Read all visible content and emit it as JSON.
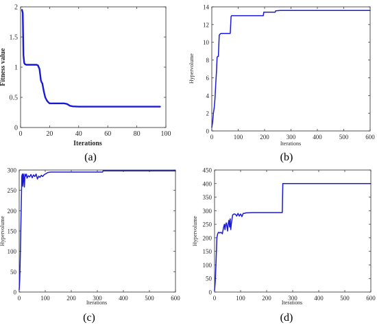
{
  "colors": {
    "series": "#1a1ad6",
    "axis": "#262626"
  },
  "chart_data": [
    {
      "id": "a",
      "panel_label": "(a)",
      "type": "line",
      "xlabel": "Iterations",
      "ylabel": "Fitness value",
      "xlim": [
        0,
        100
      ],
      "ylim": [
        0,
        2
      ],
      "xticks": [
        0,
        20,
        40,
        60,
        80,
        100
      ],
      "yticks": [
        0,
        0.5,
        1,
        1.5,
        2
      ],
      "ytick_labels": [
        "0",
        "0.5",
        "1",
        "1.5",
        "2"
      ],
      "bold_labels": true,
      "series": [
        {
          "x": [
            1,
            1.5,
            2,
            2.5,
            3,
            4,
            6,
            8,
            10,
            11,
            12,
            12.5,
            13,
            14,
            14.5,
            15,
            16,
            17,
            18,
            19,
            20,
            22,
            25,
            30,
            32,
            34,
            36,
            40,
            50,
            60,
            70,
            80,
            90,
            96
          ],
          "y": [
            1.95,
            1.9,
            1.2,
            1.07,
            1.05,
            1.04,
            1.04,
            1.04,
            1.04,
            1.04,
            1.03,
            1.0,
            0.97,
            0.78,
            0.75,
            0.73,
            0.6,
            0.5,
            0.45,
            0.42,
            0.4,
            0.4,
            0.4,
            0.4,
            0.39,
            0.36,
            0.35,
            0.345,
            0.345,
            0.345,
            0.345,
            0.345,
            0.345,
            0.345
          ]
        }
      ]
    },
    {
      "id": "b",
      "panel_label": "(b)",
      "type": "line",
      "xlabel": "Iterations",
      "ylabel": "Hypervolume",
      "xlim": [
        0,
        600
      ],
      "ylim": [
        0,
        14
      ],
      "xticks": [
        0,
        100,
        200,
        300,
        400,
        500,
        600
      ],
      "yticks": [
        0,
        2,
        4,
        6,
        8,
        10,
        12,
        14
      ],
      "ytick_labels": [
        "0",
        "2",
        "4",
        "6",
        "8",
        "10",
        "12",
        "14"
      ],
      "bold_labels": false,
      "series": [
        {
          "x": [
            0,
            3,
            6,
            9,
            12,
            15,
            18,
            20,
            22,
            25,
            28,
            30,
            35,
            40,
            50,
            60,
            70,
            73,
            75,
            100,
            150,
            195,
            197,
            200,
            240,
            242,
            260,
            300,
            400,
            500,
            600
          ],
          "y": [
            0.4,
            1.0,
            2.0,
            2.6,
            3.6,
            5.4,
            6.8,
            8.3,
            8.4,
            8.4,
            10.8,
            10.9,
            11.0,
            11.0,
            11.0,
            11.0,
            11.0,
            12.9,
            13.0,
            13.0,
            13.0,
            13.0,
            13.4,
            13.4,
            13.4,
            13.55,
            13.6,
            13.6,
            13.6,
            13.6,
            13.6
          ]
        }
      ]
    },
    {
      "id": "c",
      "panel_label": "(c)",
      "type": "line",
      "xlabel": "Iterations",
      "ylabel": "Hypervolume",
      "xlim": [
        0,
        600
      ],
      "ylim": [
        0,
        300
      ],
      "xticks": [
        0,
        100,
        200,
        300,
        400,
        500,
        600
      ],
      "yticks": [
        0,
        50,
        100,
        150,
        200,
        250,
        300
      ],
      "ytick_labels": [
        "0",
        "50",
        "100",
        "150",
        "200",
        "250",
        "300"
      ],
      "bold_labels": false,
      "series": [
        {
          "x": [
            0,
            2,
            4,
            6,
            8,
            10,
            12,
            14,
            16,
            18,
            20,
            22,
            25,
            28,
            30,
            35,
            40,
            45,
            50,
            55,
            60,
            65,
            70,
            75,
            80,
            85,
            90,
            95,
            100,
            110,
            120,
            150,
            200,
            250,
            300,
            320,
            322,
            350,
            400,
            500,
            600
          ],
          "y": [
            5,
            30,
            80,
            150,
            210,
            285,
            290,
            260,
            290,
            280,
            258,
            290,
            285,
            290,
            280,
            286,
            283,
            289,
            281,
            288,
            284,
            290,
            278,
            285,
            282,
            287,
            284,
            288,
            290,
            294,
            295,
            295,
            295,
            295,
            295,
            295,
            298,
            298,
            298,
            298,
            298
          ]
        }
      ]
    },
    {
      "id": "d",
      "panel_label": "(d)",
      "type": "line",
      "xlabel": "Iterations",
      "ylabel": "Hypervolume",
      "xlim": [
        0,
        600
      ],
      "ylim": [
        0,
        450
      ],
      "xticks": [
        0,
        100,
        200,
        300,
        400,
        500,
        600
      ],
      "yticks": [
        0,
        50,
        100,
        150,
        200,
        250,
        300,
        350,
        400,
        450
      ],
      "ytick_labels": [
        "0",
        "50",
        "100",
        "150",
        "200",
        "250",
        "300",
        "350",
        "400",
        "450"
      ],
      "bold_labels": false,
      "series": [
        {
          "x": [
            0,
            3,
            6,
            9,
            12,
            15,
            18,
            20,
            25,
            30,
            35,
            38,
            40,
            42,
            45,
            48,
            50,
            52,
            55,
            58,
            60,
            62,
            65,
            68,
            70,
            75,
            80,
            85,
            90,
            95,
            100,
            105,
            110,
            115,
            120,
            150,
            200,
            260,
            262,
            265,
            300,
            400,
            500,
            600
          ],
          "y": [
            5,
            40,
            120,
            200,
            215,
            220,
            220,
            218,
            220,
            215,
            240,
            250,
            230,
            245,
            255,
            240,
            225,
            250,
            265,
            240,
            270,
            230,
            255,
            275,
            285,
            288,
            287,
            280,
            290,
            280,
            288,
            278,
            290,
            290,
            292,
            293,
            293,
            293,
            400,
            400,
            400,
            400,
            400,
            400
          ]
        }
      ]
    }
  ]
}
